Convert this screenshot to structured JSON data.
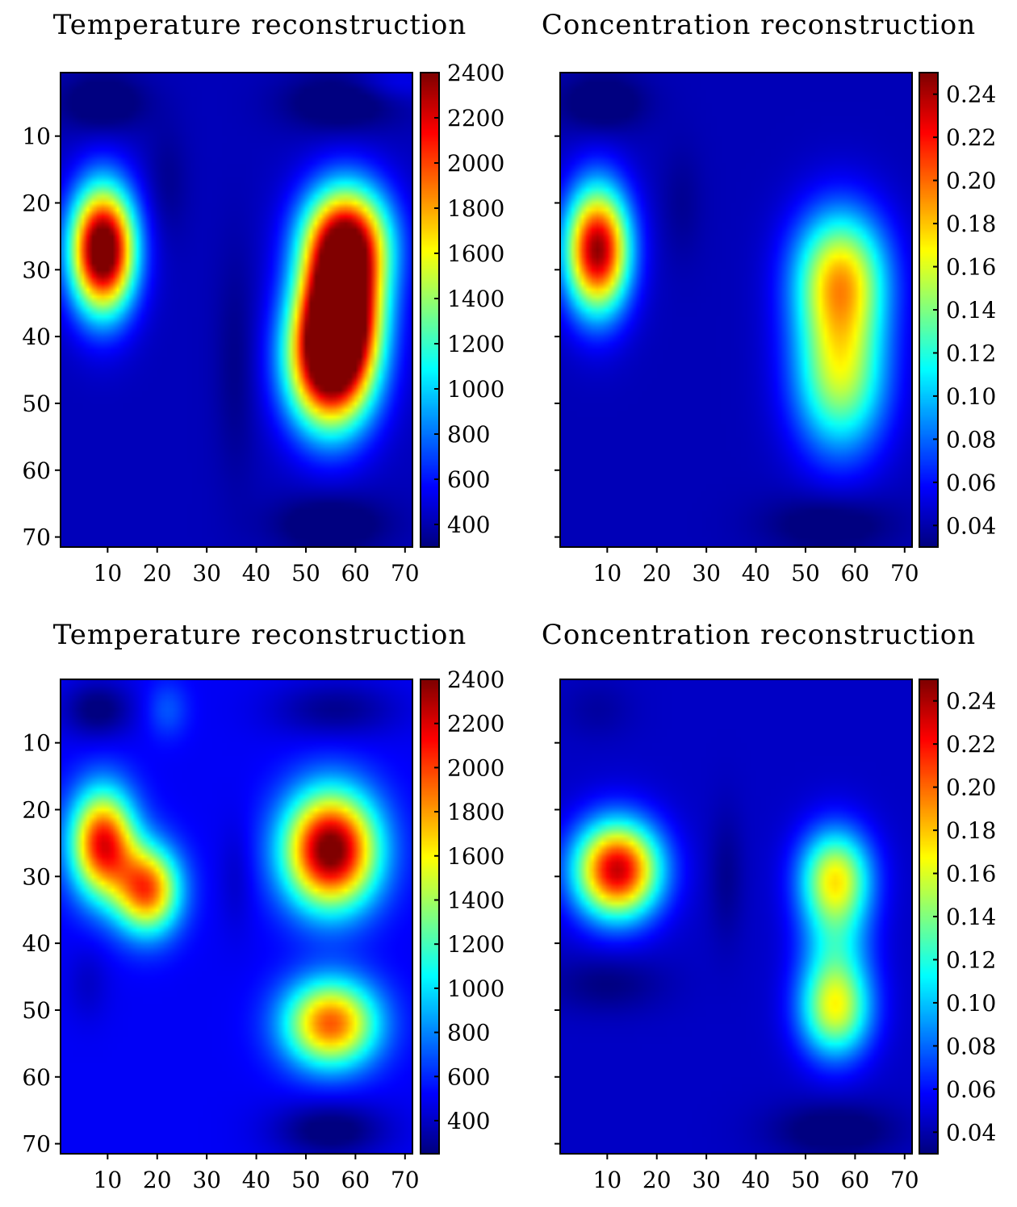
{
  "chart_data": [
    {
      "type": "heatmap",
      "title": "Temperature reconstruction",
      "xlabel": "",
      "ylabel": "",
      "xlim": [
        0.5,
        71.5
      ],
      "ylim": [
        71.5,
        0.5
      ],
      "xticks": [
        10,
        20,
        30,
        40,
        50,
        60,
        70
      ],
      "yticks": [
        10,
        20,
        30,
        40,
        50,
        60,
        70
      ],
      "yticks_labeled": true,
      "colormap": "jet",
      "colorbar": {
        "min": 300,
        "max": 2400,
        "ticks": [
          400,
          600,
          800,
          1000,
          1200,
          1400,
          1600,
          1800,
          2000,
          2200,
          2400
        ]
      },
      "field": {
        "base": 420,
        "blobs": [
          {
            "x": 9,
            "y": 27,
            "value": 2280,
            "sx": 4.5,
            "sy": 6.5
          },
          {
            "x": 58,
            "y": 26,
            "value": 2000,
            "sx": 6,
            "sy": 6
          },
          {
            "x": 55,
            "y": 44,
            "value": 2180,
            "sx": 6,
            "sy": 7
          },
          {
            "x": 57,
            "y": 36,
            "value": 1700,
            "sx": 5.5,
            "sy": 6
          },
          {
            "x": 9,
            "y": 5,
            "value": -220,
            "sx": 6,
            "sy": 3
          },
          {
            "x": 57,
            "y": 5,
            "value": -220,
            "sx": 8,
            "sy": 3
          },
          {
            "x": 55,
            "y": 68,
            "value": -220,
            "sx": 8,
            "sy": 3
          },
          {
            "x": 22,
            "y": 17,
            "value": -90,
            "sx": 3,
            "sy": 6
          },
          {
            "x": 36,
            "y": 44,
            "value": -110,
            "sx": 3,
            "sy": 12
          },
          {
            "x": 68,
            "y": 2,
            "value": 130,
            "sx": 6,
            "sy": 2
          }
        ]
      }
    },
    {
      "type": "heatmap",
      "title": "Concentration reconstruction",
      "xlabel": "",
      "ylabel": "",
      "xlim": [
        0.5,
        71.5
      ],
      "ylim": [
        71.5,
        0.5
      ],
      "xticks": [
        10,
        20,
        30,
        40,
        50,
        60,
        70
      ],
      "yticks": [
        10,
        20,
        30,
        40,
        50,
        60,
        70
      ],
      "yticks_labeled": false,
      "colormap": "jet",
      "colorbar": {
        "min": 0.03,
        "max": 0.25,
        "ticks": [
          0.04,
          0.06,
          0.08,
          0.1,
          0.12,
          0.14,
          0.16,
          0.18,
          0.2,
          0.22,
          0.24
        ],
        "tick_labels": [
          "0.04",
          "0.06",
          "0.08",
          "0.10",
          "0.12",
          "0.14",
          "0.16",
          "0.18",
          "0.20",
          "0.22",
          "0.24"
        ]
      },
      "field": {
        "base": 0.042,
        "blobs": [
          {
            "x": 8,
            "y": 27,
            "value": 0.205,
            "sx": 4.5,
            "sy": 6.5
          },
          {
            "x": 57,
            "y": 31,
            "value": 0.13,
            "sx": 6.5,
            "sy": 7
          },
          {
            "x": 57,
            "y": 46,
            "value": 0.108,
            "sx": 6.5,
            "sy": 8
          },
          {
            "x": 9,
            "y": 5,
            "value": -0.022,
            "sx": 6,
            "sy": 3
          },
          {
            "x": 55,
            "y": 68,
            "value": -0.02,
            "sx": 9,
            "sy": 3
          },
          {
            "x": 25,
            "y": 20,
            "value": -0.008,
            "sx": 3,
            "sy": 6
          }
        ]
      }
    },
    {
      "type": "heatmap",
      "title": "Temperature reconstruction",
      "xlabel": "",
      "ylabel": "",
      "xlim": [
        0.5,
        71.5
      ],
      "ylim": [
        71.5,
        0.5
      ],
      "xticks": [
        10,
        20,
        30,
        40,
        50,
        60,
        70
      ],
      "yticks": [
        10,
        20,
        30,
        40,
        50,
        60,
        70
      ],
      "yticks_labeled": true,
      "colormap": "jet",
      "colorbar": {
        "min": 250,
        "max": 2400,
        "ticks": [
          400,
          600,
          800,
          1000,
          1200,
          1400,
          1600,
          1800,
          2000,
          2200,
          2400
        ]
      },
      "field": {
        "base": 500,
        "blobs": [
          {
            "x": 9,
            "y": 25,
            "value": 1650,
            "sx": 4.5,
            "sy": 5.5
          },
          {
            "x": 18,
            "y": 32,
            "value": 1450,
            "sx": 4.5,
            "sy": 4.5
          },
          {
            "x": 55,
            "y": 26,
            "value": 2000,
            "sx": 6.5,
            "sy": 6
          },
          {
            "x": 55,
            "y": 52,
            "value": 1450,
            "sx": 6.5,
            "sy": 4.5
          },
          {
            "x": 8,
            "y": 5,
            "value": -280,
            "sx": 5,
            "sy": 3
          },
          {
            "x": 56,
            "y": 5,
            "value": -220,
            "sx": 9,
            "sy": 3
          },
          {
            "x": 55,
            "y": 68,
            "value": -300,
            "sx": 8,
            "sy": 3
          },
          {
            "x": 22,
            "y": 5,
            "value": 200,
            "sx": 3,
            "sy": 3
          },
          {
            "x": 36,
            "y": 30,
            "value": -100,
            "sx": 2.5,
            "sy": 6
          },
          {
            "x": 6,
            "y": 46,
            "value": -100,
            "sx": 3,
            "sy": 4
          }
        ]
      }
    },
    {
      "type": "heatmap",
      "title": "Concentration reconstruction",
      "xlabel": "",
      "ylabel": "",
      "xlim": [
        0.5,
        71.5
      ],
      "ylim": [
        71.5,
        0.5
      ],
      "xticks": [
        10,
        20,
        30,
        40,
        50,
        60,
        70
      ],
      "yticks": [
        10,
        20,
        30,
        40,
        50,
        60,
        70
      ],
      "yticks_labeled": false,
      "colormap": "jet",
      "colorbar": {
        "min": 0.03,
        "max": 0.25,
        "ticks": [
          0.04,
          0.06,
          0.08,
          0.1,
          0.12,
          0.14,
          0.16,
          0.18,
          0.2,
          0.22,
          0.24
        ],
        "tick_labels": [
          "0.04",
          "0.06",
          "0.08",
          "0.10",
          "0.12",
          "0.14",
          "0.16",
          "0.18",
          "0.20",
          "0.22",
          "0.24"
        ]
      },
      "field": {
        "base": 0.045,
        "blobs": [
          {
            "x": 12,
            "y": 29,
            "value": 0.19,
            "sx": 6,
            "sy": 5
          },
          {
            "x": 56,
            "y": 30,
            "value": 0.115,
            "sx": 5,
            "sy": 5
          },
          {
            "x": 56,
            "y": 50,
            "value": 0.11,
            "sx": 5,
            "sy": 5
          },
          {
            "x": 56,
            "y": 40,
            "value": 0.05,
            "sx": 5,
            "sy": 6
          },
          {
            "x": 56,
            "y": 68,
            "value": -0.022,
            "sx": 9,
            "sy": 3
          },
          {
            "x": 10,
            "y": 46,
            "value": -0.015,
            "sx": 8,
            "sy": 3
          },
          {
            "x": 34,
            "y": 30,
            "value": -0.012,
            "sx": 2.5,
            "sy": 7
          },
          {
            "x": 8,
            "y": 5,
            "value": -0.008,
            "sx": 5,
            "sy": 3
          }
        ]
      }
    }
  ]
}
